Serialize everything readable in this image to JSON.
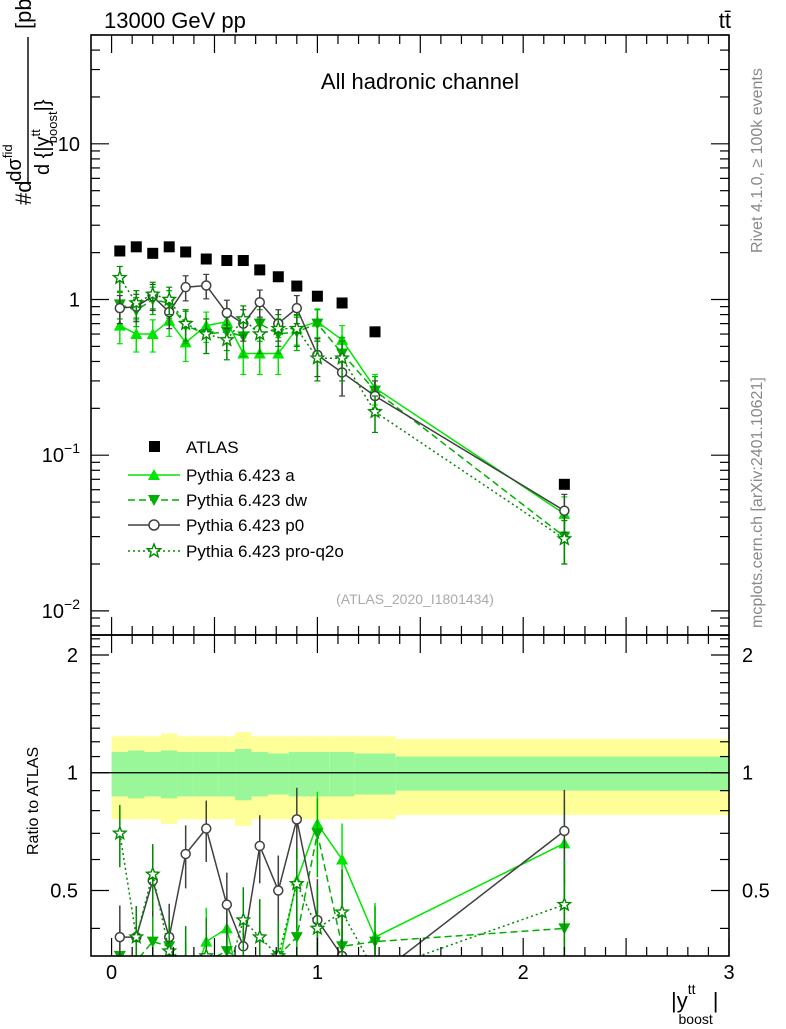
{
  "header": {
    "energy_label": "13000 GeV pp",
    "process_label": "tt̄"
  },
  "side_labels": {
    "rivet": "Rivet 4.1.0, ≥ 100k events",
    "mcplots": "mcplots.cern.ch [arXiv:2401.10621]"
  },
  "y_axis": {
    "numerator": "#d",
    "frac_top": "dσ",
    "frac_top_sup": "fid",
    "frac_bottom": "d {|y",
    "frac_bottom_sup": "tt",
    "frac_bottom_sub": "boost",
    "frac_bottom_close": "|}",
    "unit": "[pb]"
  },
  "x_axis": {
    "label_main": "|y",
    "label_sup": "tt",
    "label_sub": "boost",
    "label_close": "|"
  },
  "main_plot": {
    "title": "All hadronic channel",
    "watermark": "(ATLAS_2020_I1801434)",
    "y_ticks": [
      {
        "value": 10,
        "label": "10"
      },
      {
        "value": 1,
        "label": "1"
      },
      {
        "value": 0.1,
        "base": "10",
        "exp": "−1"
      },
      {
        "value": 0.01,
        "base": "10",
        "exp": "−2"
      }
    ]
  },
  "ratio_plot": {
    "ylabel": "Ratio to ATLAS",
    "y_ticks": [
      "2",
      "1",
      "0.5"
    ],
    "x_ticks": [
      "0",
      "1",
      "2",
      "3"
    ]
  },
  "legend": {
    "atlas": "ATLAS",
    "a": "Pythia 6.423 a",
    "dw": "Pythia 6.423 dw",
    "p0": "Pythia 6.423 p0",
    "q2o": "Pythia 6.423 pro-q2o"
  },
  "colors": {
    "data": "#000000",
    "a": "#00e600",
    "dw": "#00b000",
    "p0": "#404040",
    "q2o": "#008a00",
    "band_inner": "#99f799",
    "band_outer": "#ffff99"
  },
  "chart_data": {
    "type": "line",
    "xlabel": "|y^tt_boost|",
    "ylabel": "#d dσ^fid / d{|y^tt_boost|} [pb]",
    "xlim": [
      -0.1,
      3.0
    ],
    "ylim": [
      0.007,
      50
    ],
    "y_scale": "log",
    "ratio_ylim": [
      0.34,
      2.25
    ],
    "ratio_y_scale": "log",
    "bins": [
      0.0,
      0.08,
      0.16,
      0.24,
      0.32,
      0.4,
      0.52,
      0.6,
      0.68,
      0.76,
      0.86,
      0.94,
      1.06,
      1.18,
      1.38,
      3.0
    ],
    "atlas": {
      "x": [
        0.04,
        0.12,
        0.2,
        0.28,
        0.36,
        0.46,
        0.56,
        0.64,
        0.72,
        0.81,
        0.9,
        1.0,
        1.12,
        1.28,
        2.2
      ],
      "y": [
        2.05,
        2.18,
        1.98,
        2.18,
        2.02,
        1.82,
        1.78,
        1.78,
        1.55,
        1.4,
        1.22,
        1.05,
        0.95,
        0.62,
        0.065
      ],
      "ratio_inner": [
        0.13,
        0.14,
        0.13,
        0.14,
        0.13,
        0.13,
        0.13,
        0.15,
        0.13,
        0.12,
        0.13,
        0.13,
        0.13,
        0.12,
        0.1
      ],
      "ratio_outer": [
        0.24,
        0.24,
        0.24,
        0.26,
        0.24,
        0.24,
        0.24,
        0.27,
        0.24,
        0.24,
        0.24,
        0.24,
        0.24,
        0.24,
        0.22
      ]
    },
    "series": [
      {
        "key": "a",
        "name": "Pythia 6.423 a",
        "marker": "triangle-up",
        "dash": "",
        "x": [
          0.04,
          0.12,
          0.2,
          0.28,
          0.36,
          0.46,
          0.56,
          0.64,
          0.72,
          0.81,
          0.9,
          1.0,
          1.12,
          1.28,
          2.2
        ],
        "y": [
          0.68,
          0.6,
          0.6,
          0.73,
          0.53,
          0.68,
          0.72,
          0.45,
          0.45,
          0.45,
          0.65,
          0.72,
          0.55,
          0.27,
          0.042
        ],
        "yerr": [
          0.16,
          0.14,
          0.14,
          0.15,
          0.13,
          0.15,
          0.15,
          0.12,
          0.12,
          0.12,
          0.14,
          0.15,
          0.13,
          0.06,
          0.012
        ]
      },
      {
        "key": "dw",
        "name": "Pythia 6.423 dw",
        "marker": "triangle-down",
        "dash": "7,4",
        "x": [
          0.04,
          0.12,
          0.2,
          0.28,
          0.36,
          0.46,
          0.56,
          0.64,
          0.72,
          0.81,
          0.9,
          1.0,
          1.12,
          1.28,
          2.2
        ],
        "y": [
          0.93,
          0.85,
          1.0,
          0.95,
          0.68,
          0.6,
          0.62,
          0.58,
          0.7,
          0.6,
          0.62,
          0.7,
          0.45,
          0.26,
          0.03
        ],
        "yerr": [
          0.18,
          0.18,
          0.2,
          0.19,
          0.16,
          0.15,
          0.15,
          0.15,
          0.16,
          0.15,
          0.15,
          0.16,
          0.12,
          0.06,
          0.01
        ]
      },
      {
        "key": "p0",
        "name": "Pythia 6.423 p0",
        "marker": "circle",
        "dash": "",
        "x": [
          0.04,
          0.12,
          0.2,
          0.28,
          0.36,
          0.46,
          0.56,
          0.64,
          0.72,
          0.81,
          0.9,
          1.0,
          1.12,
          1.28,
          2.2
        ],
        "y": [
          0.88,
          0.9,
          1.05,
          0.83,
          1.2,
          1.23,
          0.82,
          0.7,
          0.96,
          0.7,
          0.88,
          0.44,
          0.34,
          0.24,
          0.044
        ],
        "yerr": [
          0.18,
          0.18,
          0.2,
          0.18,
          0.22,
          0.22,
          0.17,
          0.16,
          0.19,
          0.16,
          0.18,
          0.12,
          0.1,
          0.06,
          0.012
        ]
      },
      {
        "key": "q2o",
        "name": "Pythia 6.423 pro-q2o",
        "marker": "star",
        "dash": "2,3",
        "x": [
          0.04,
          0.12,
          0.2,
          0.28,
          0.36,
          0.46,
          0.56,
          0.64,
          0.72,
          0.81,
          0.9,
          1.0,
          1.12,
          1.28,
          2.2
        ],
        "y": [
          1.38,
          0.95,
          1.08,
          1.0,
          0.7,
          0.6,
          0.55,
          0.75,
          0.6,
          0.65,
          0.65,
          0.42,
          0.42,
          0.19,
          0.029
        ],
        "yerr": [
          0.25,
          0.19,
          0.21,
          0.2,
          0.16,
          0.15,
          0.14,
          0.16,
          0.15,
          0.15,
          0.15,
          0.12,
          0.12,
          0.05,
          0.009
        ]
      }
    ],
    "ratios": {
      "a": [
        0.33,
        0.31,
        0.31,
        0.33,
        0.26,
        0.37,
        0.4,
        0.26,
        0.29,
        0.32,
        0.53,
        0.74,
        0.6,
        0.38,
        0.66
      ],
      "dw": [
        0.34,
        0.33,
        0.37,
        0.36,
        0.3,
        0.33,
        0.35,
        0.33,
        0.33,
        0.34,
        0.38,
        0.7,
        0.36,
        0.37,
        0.4
      ],
      "p0": [
        0.38,
        0.38,
        0.53,
        0.38,
        0.62,
        0.72,
        0.46,
        0.36,
        0.65,
        0.5,
        0.76,
        0.42,
        0.34,
        0.3,
        0.71
      ],
      "q2o": [
        0.7,
        0.38,
        0.55,
        0.35,
        0.33,
        0.34,
        0.3,
        0.42,
        0.38,
        0.34,
        0.52,
        0.4,
        0.44,
        0.31,
        0.46
      ]
    }
  }
}
